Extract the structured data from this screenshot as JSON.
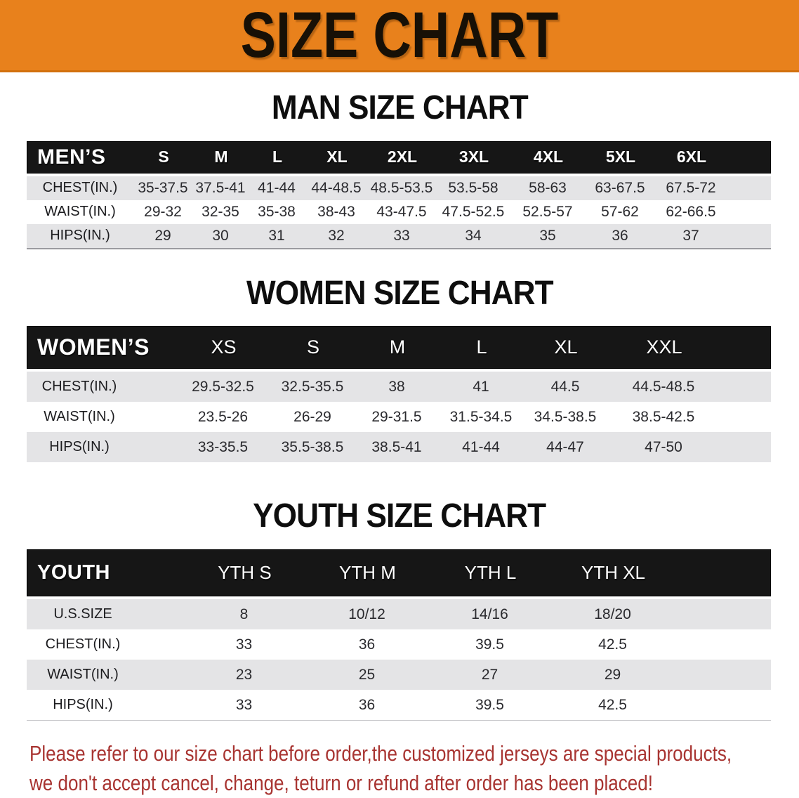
{
  "banner": {
    "title": "SIZE CHART"
  },
  "men": {
    "section_title": "MAN SIZE CHART",
    "header_label": "MEN’S",
    "columns": [
      "S",
      "M",
      "L",
      "XL",
      "2XL",
      "3XL",
      "4XL",
      "5XL",
      "6XL"
    ],
    "rows": [
      {
        "label": "CHEST(IN.)",
        "values": [
          "35-37.5",
          "37.5-41",
          "41-44",
          "44-48.5",
          "48.5-53.5",
          "53.5-58",
          "58-63",
          "63-67.5",
          "67.5-72"
        ]
      },
      {
        "label": "WAIST(IN.)",
        "values": [
          "29-32",
          "32-35",
          "35-38",
          "38-43",
          "43-47.5",
          "47.5-52.5",
          "52.5-57",
          "57-62",
          "62-66.5"
        ]
      },
      {
        "label": "HIPS(IN.)",
        "values": [
          "29",
          "30",
          "31",
          "32",
          "33",
          "34",
          "35",
          "36",
          "37"
        ]
      }
    ]
  },
  "women": {
    "section_title": "WOMEN SIZE CHART",
    "header_label": "WOMEN’S",
    "columns": [
      "XS",
      "S",
      "M",
      "L",
      "XL",
      "XXL"
    ],
    "rows": [
      {
        "label": "CHEST(IN.)",
        "values": [
          "29.5-32.5",
          "32.5-35.5",
          "38",
          "41",
          "44.5",
          "44.5-48.5"
        ]
      },
      {
        "label": "WAIST(IN.)",
        "values": [
          "23.5-26",
          "26-29",
          "29-31.5",
          "31.5-34.5",
          "34.5-38.5",
          "38.5-42.5"
        ]
      },
      {
        "label": "HIPS(IN.)",
        "values": [
          "33-35.5",
          "35.5-38.5",
          "38.5-41",
          "41-44",
          "44-47",
          "47-50"
        ]
      }
    ]
  },
  "youth": {
    "section_title": "YOUTH SIZE CHART",
    "header_label": "YOUTH",
    "columns": [
      "YTH S",
      "YTH M",
      "YTH L",
      "YTH XL"
    ],
    "rows": [
      {
        "label": "U.S.SIZE",
        "values": [
          "8",
          "10/12",
          "14/16",
          "18/20"
        ]
      },
      {
        "label": "CHEST(IN.)",
        "values": [
          "33",
          "36",
          "39.5",
          "42.5"
        ]
      },
      {
        "label": "WAIST(IN.)",
        "values": [
          "23",
          "25",
          "27",
          "29"
        ]
      },
      {
        "label": "HIPS(IN.)",
        "values": [
          "33",
          "36",
          "39.5",
          "42.5"
        ]
      }
    ]
  },
  "disclaimer": {
    "line1": "Please refer to our size chart before order,the customized jerseys are special products,",
    "line2": "we don't accept cancel, change, teturn or refund after order has been placed!"
  },
  "colors": {
    "banner_orange": "#E8811C",
    "header_black": "#161616",
    "stripe_gray": "#E4E4E6",
    "disclaimer_red": "#A83431"
  }
}
